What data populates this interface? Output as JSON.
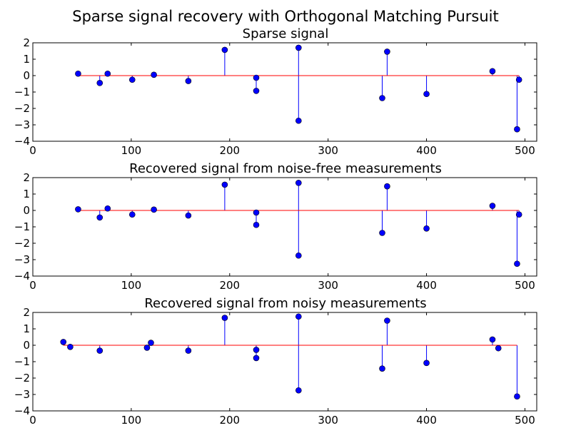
{
  "figure": {
    "suptitle": "Sparse signal recovery with Orthogonal Matching Pursuit"
  },
  "style": {
    "stem_color": "#0000ff",
    "marker_color": "#0000ff",
    "baseline_color": "#ff0000",
    "axes_color": "#000000",
    "background": "#ffffff"
  },
  "chart_data": [
    {
      "type": "stem",
      "title": "Sparse signal",
      "xlabel": "",
      "ylabel": "",
      "xlim": [
        0,
        512
      ],
      "ylim": [
        -4,
        2
      ],
      "xticks": [
        0,
        100,
        200,
        300,
        400,
        500
      ],
      "yticks": [
        2,
        1,
        0,
        -1,
        -2,
        -3,
        -4
      ],
      "baseline_range": [
        46,
        494
      ],
      "x": [
        46,
        68,
        76,
        101,
        123,
        158,
        195,
        227,
        227,
        270,
        270,
        355,
        360,
        400,
        467,
        492,
        494
      ],
      "y": [
        0.12,
        -0.45,
        0.12,
        -0.25,
        0.05,
        -0.33,
        1.57,
        -0.93,
        -0.13,
        1.7,
        -2.75,
        -1.37,
        1.46,
        -1.12,
        0.27,
        -3.27,
        -0.25
      ]
    },
    {
      "type": "stem",
      "title": "Recovered signal from noise-free measurements",
      "xlabel": "",
      "ylabel": "",
      "xlim": [
        0,
        512
      ],
      "ylim": [
        -4,
        2
      ],
      "xticks": [
        0,
        100,
        200,
        300,
        400,
        500
      ],
      "yticks": [
        2,
        1,
        0,
        -1,
        -2,
        -3,
        -4
      ],
      "baseline_range": [
        46,
        494
      ],
      "x": [
        46,
        68,
        76,
        101,
        123,
        158,
        195,
        227,
        227,
        270,
        270,
        355,
        360,
        400,
        467,
        492,
        494
      ],
      "y": [
        0.07,
        -0.43,
        0.12,
        -0.25,
        0.05,
        -0.31,
        1.57,
        -0.88,
        -0.13,
        1.68,
        -2.75,
        -1.37,
        1.47,
        -1.1,
        0.28,
        -3.25,
        -0.25
      ]
    },
    {
      "type": "stem",
      "title": "Recovered signal from noisy measurements",
      "xlabel": "",
      "ylabel": "",
      "xlim": [
        0,
        512
      ],
      "ylim": [
        -4,
        2
      ],
      "xticks": [
        0,
        100,
        200,
        300,
        400,
        500
      ],
      "yticks": [
        2,
        1,
        0,
        -1,
        -2,
        -3,
        -4
      ],
      "baseline_range": [
        31,
        492
      ],
      "x": [
        31,
        38,
        68,
        116,
        120,
        158,
        195,
        227,
        227,
        270,
        270,
        355,
        360,
        400,
        467,
        473,
        492
      ],
      "y": [
        0.2,
        -0.1,
        -0.33,
        -0.15,
        0.15,
        -0.33,
        1.67,
        -0.78,
        -0.28,
        1.75,
        -2.75,
        -1.42,
        1.5,
        -1.08,
        0.35,
        -0.18,
        -3.12
      ]
    }
  ]
}
